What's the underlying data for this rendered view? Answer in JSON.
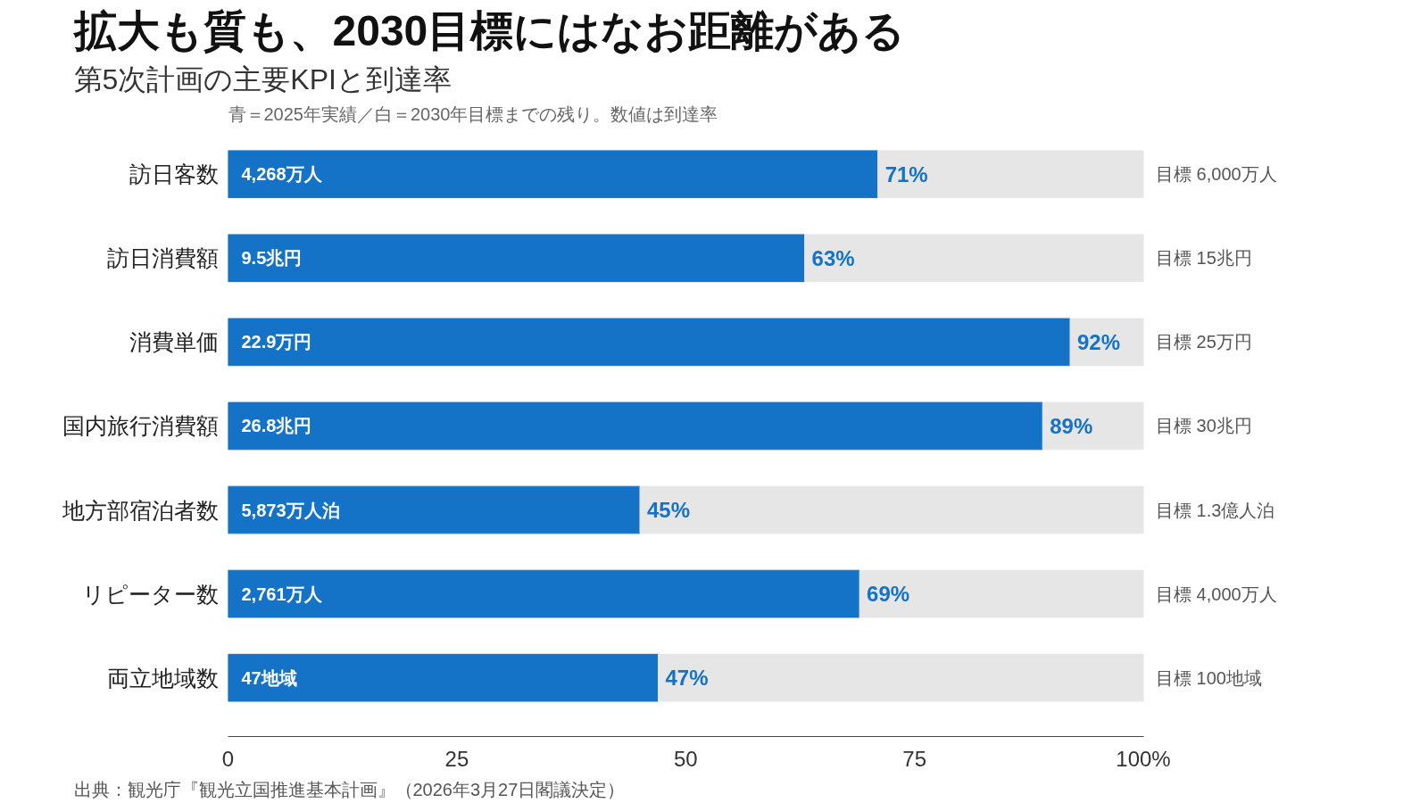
{
  "chart_data": {
    "type": "bar",
    "orientation": "horizontal",
    "stacked": true,
    "title": "拡大も質も、2030目標にはなお距離がある",
    "subtitle": "第5次計画の主要KPIと到達率",
    "categories": [
      "訪日客数",
      "訪日消費額",
      "消費単価",
      "国内旅行消費額",
      "地方部宿泊者数",
      "リピーター数",
      "両立地域数"
    ],
    "series": [
      {
        "color": "#1473c6",
        "values": [
          71,
          63,
          92,
          89,
          45,
          69,
          47
        ],
        "value_labels": [
          "71%",
          "63%",
          "92%",
          "89%",
          "45%",
          "69%",
          "47%"
        ]
      },
      {
        "color": "#e6e6e6",
        "values": [
          29,
          37,
          8,
          11,
          55,
          31,
          53
        ]
      }
    ],
    "xlim": [
      0,
      100
    ],
    "xticks": [
      0,
      25,
      50,
      75,
      {
        "value": 100,
        "label": "100%"
      }
    ],
    "grid": false,
    "annotations": [
      "青＝2025年実績／白＝2030年目標までの残り。数値は到達率",
      "出典：観光庁『観光立国推進基本計画』（2026年3月27日閣議決定）",
      "4,268万人",
      "9.5兆円",
      "22.9万円",
      "26.8兆円",
      "5,873万人泊",
      "2,761万人",
      "47地域",
      "目標 6,000万人",
      "目標 15兆円",
      "目標 25万円",
      "目標 30兆円",
      "目標 1.3億人泊",
      "目標 4,000万人",
      "目標 100地域"
    ]
  }
}
